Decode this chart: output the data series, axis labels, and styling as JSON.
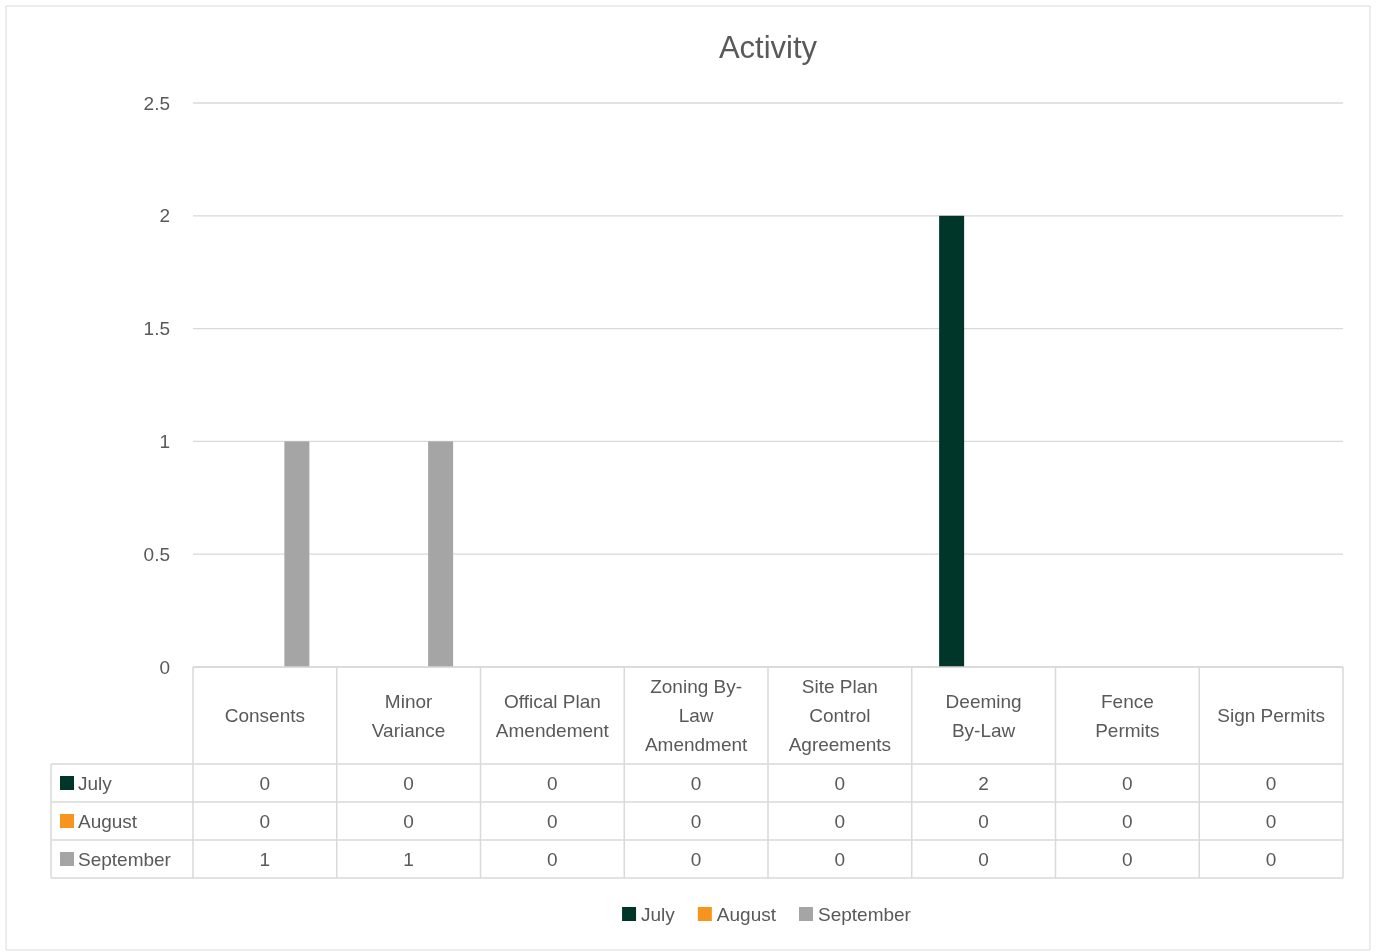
{
  "chart_data": {
    "type": "bar",
    "title": "Activity",
    "categories": [
      "Consents",
      "Minor Variance",
      "Offical Plan Amendement",
      "Zoning By-Law Amendment",
      "Site Plan Control Agreements",
      "Deeming By-Law",
      "Fence Permits",
      "Sign Permits"
    ],
    "series": [
      {
        "name": "July",
        "color": "#00352a",
        "values": [
          0,
          0,
          0,
          0,
          0,
          2,
          0,
          0
        ]
      },
      {
        "name": "August",
        "color": "#f7941d",
        "values": [
          0,
          0,
          0,
          0,
          0,
          0,
          0,
          0
        ]
      },
      {
        "name": "September",
        "color": "#a5a5a5",
        "values": [
          1,
          1,
          0,
          0,
          0,
          0,
          0,
          0
        ]
      }
    ],
    "ylim": [
      0,
      2.5
    ],
    "yticks": [
      0,
      0.5,
      1,
      1.5,
      2,
      2.5
    ],
    "grid": "y",
    "legend": "bottom",
    "data_labels": true
  }
}
